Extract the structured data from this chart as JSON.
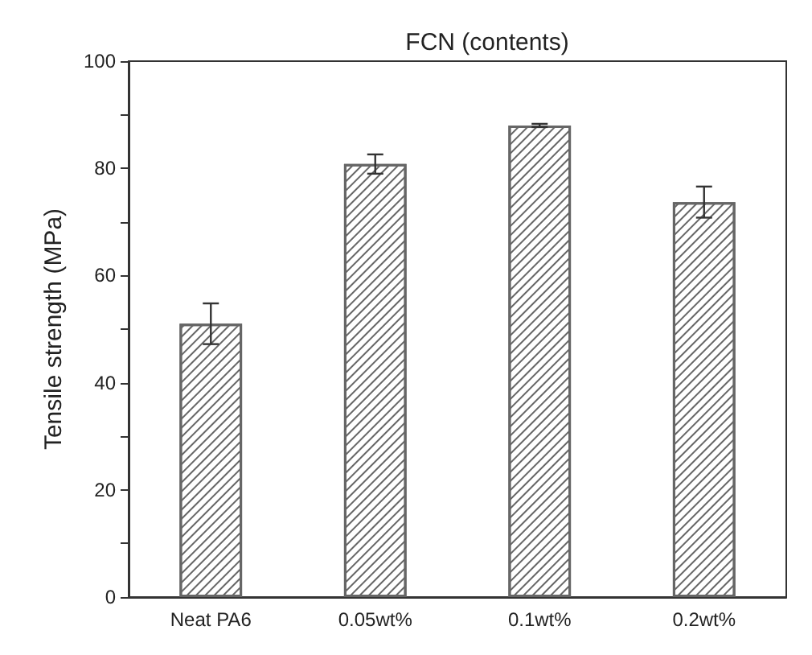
{
  "chart_data": {
    "type": "bar",
    "title": "FCN (contents)",
    "ylabel": "Tensile strength (MPa)",
    "categories": [
      "Neat PA6",
      "0.05wt%",
      "0.1wt%",
      "0.2wt%"
    ],
    "values": [
      51,
      80.8,
      88,
      73.7
    ],
    "errors": [
      3.8,
      1.8,
      0.3,
      2.9
    ],
    "color": "#666666",
    "ylim": [
      0,
      100
    ],
    "yticks": [
      0,
      {
        "value": 10,
        "label": null
      },
      20,
      {
        "value": 30,
        "label": null
      },
      40,
      {
        "value": 50,
        "label": null
      },
      60,
      {
        "value": 70,
        "label": null
      },
      80,
      {
        "value": 90,
        "label": null
      },
      100
    ],
    "grid": false
  }
}
